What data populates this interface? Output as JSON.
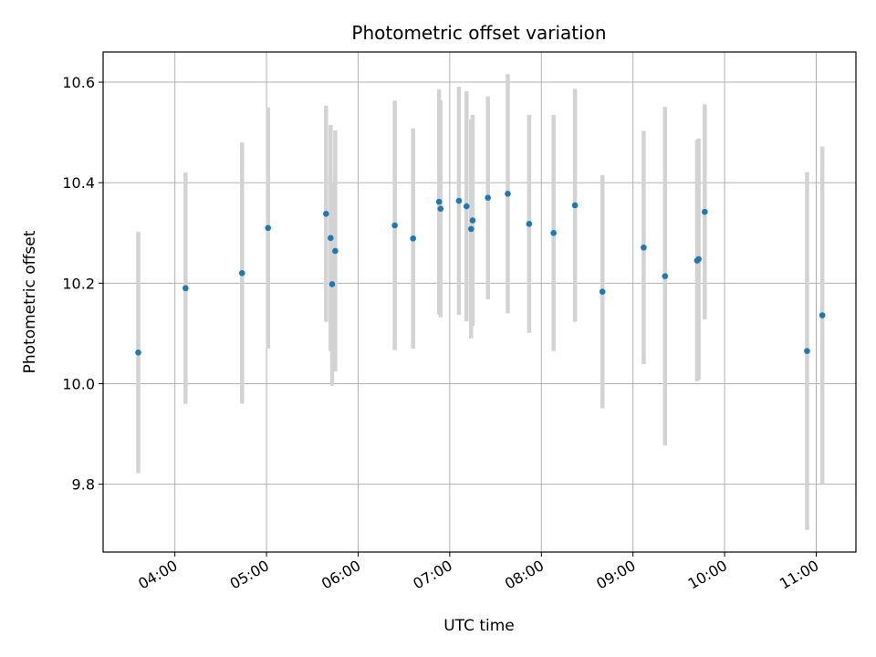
{
  "chart_data": {
    "type": "scatter",
    "title": "Photometric offset variation",
    "xlabel": "UTC time",
    "ylabel": "Photometric offset",
    "grid": true,
    "x_tick_labels": [
      "04:00",
      "05:00",
      "06:00",
      "07:00",
      "08:00",
      "09:00",
      "10:00",
      "11:00"
    ],
    "x_tick_values": [
      "04:00",
      "05:00",
      "06:00",
      "07:00",
      "08:00",
      "09:00",
      "10:00",
      "11:00"
    ],
    "y_ticks": [
      9.8,
      10.0,
      10.2,
      10.4,
      10.6
    ],
    "y_tick_labels": [
      "9.8",
      "10.0",
      "10.2",
      "10.4",
      "10.6"
    ],
    "xlim": [
      "03:13",
      "11:26"
    ],
    "ylim": [
      9.665,
      10.66
    ],
    "colors": {
      "point": "#1f77b4",
      "errorbar": "#d3d3d3",
      "grid": "#b0b0b0"
    },
    "points": [
      {
        "x": "03:36",
        "y": 10.062,
        "err": 0.24
      },
      {
        "x": "04:07",
        "y": 10.19,
        "err": 0.23
      },
      {
        "x": "04:44",
        "y": 10.22,
        "err": 0.26
      },
      {
        "x": "05:01",
        "y": 10.31,
        "err": 0.24
      },
      {
        "x": "05:39",
        "y": 10.338,
        "err": 0.215
      },
      {
        "x": "05:42",
        "y": 10.29,
        "err": 0.225
      },
      {
        "x": "05:43",
        "y": 10.198,
        "err": 0.202
      },
      {
        "x": "05:45",
        "y": 10.264,
        "err": 0.24
      },
      {
        "x": "06:24",
        "y": 10.315,
        "err": 0.248
      },
      {
        "x": "06:36",
        "y": 10.289,
        "err": 0.219
      },
      {
        "x": "06:53",
        "y": 10.362,
        "err": 0.224
      },
      {
        "x": "06:54",
        "y": 10.348,
        "err": 0.216
      },
      {
        "x": "07:06",
        "y": 10.364,
        "err": 0.227
      },
      {
        "x": "07:11",
        "y": 10.353,
        "err": 0.229
      },
      {
        "x": "07:14",
        "y": 10.308,
        "err": 0.218
      },
      {
        "x": "07:15",
        "y": 10.325,
        "err": 0.21
      },
      {
        "x": "07:25",
        "y": 10.37,
        "err": 0.202
      },
      {
        "x": "07:38",
        "y": 10.378,
        "err": 0.238
      },
      {
        "x": "07:52",
        "y": 10.318,
        "err": 0.217
      },
      {
        "x": "08:08",
        "y": 10.3,
        "err": 0.235
      },
      {
        "x": "08:22",
        "y": 10.355,
        "err": 0.232
      },
      {
        "x": "08:40",
        "y": 10.183,
        "err": 0.232
      },
      {
        "x": "09:07",
        "y": 10.271,
        "err": 0.232
      },
      {
        "x": "09:21",
        "y": 10.214,
        "err": 0.337
      },
      {
        "x": "09:42",
        "y": 10.245,
        "err": 0.24
      },
      {
        "x": "09:43",
        "y": 10.248,
        "err": 0.24
      },
      {
        "x": "09:47",
        "y": 10.342,
        "err": 0.214
      },
      {
        "x": "10:54",
        "y": 10.065,
        "err": 0.356
      },
      {
        "x": "11:04",
        "y": 10.136,
        "err": 0.336
      }
    ]
  }
}
